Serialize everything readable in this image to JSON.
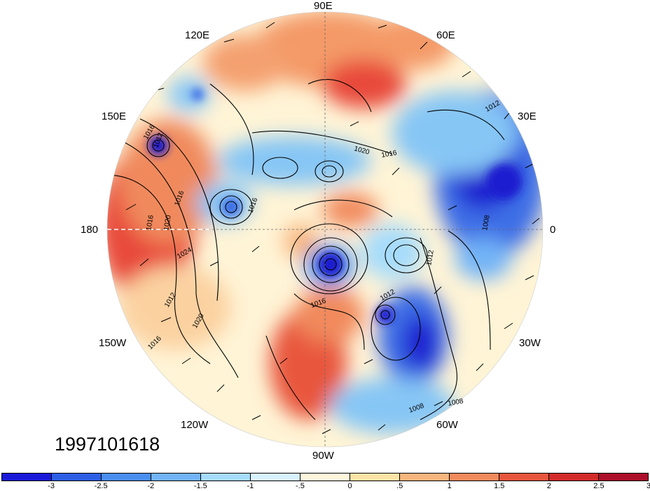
{
  "map": {
    "projection": "north-polar-stereographic",
    "longitude_labels": [
      "90E",
      "60E",
      "30E",
      "0",
      "30W",
      "60W",
      "90W",
      "120W",
      "150W",
      "180",
      "150E",
      "120E"
    ],
    "contour_labels": [
      "1012",
      "1016",
      "1020",
      "1024",
      "1016",
      "1020",
      "1016",
      "1012",
      "1020",
      "1016",
      "1016",
      "1016",
      "1012",
      "1016",
      "1008",
      "1012",
      "1012",
      "1008",
      "1008"
    ],
    "date": "1997101618",
    "colors": {
      "deep_blue": "#1f1fd0",
      "blue": "#3c6ee6",
      "light_blue": "#86c6f5",
      "pale_blue": "#c8ecff",
      "cream": "#fff8da",
      "orange": "#f49a68",
      "red": "#e8493a",
      "dark_red": "#b0102a"
    }
  },
  "colorbar": {
    "colors": [
      "#1a1ad8",
      "#2d5fe6",
      "#4a8ef0",
      "#72b4f7",
      "#a6dcfb",
      "#d8f3ff",
      "#fff7dc",
      "#fde4a6",
      "#f8b57e",
      "#f18a5d",
      "#e8563e",
      "#d32b2b",
      "#ac0f29"
    ],
    "tick_labels": [
      "-3",
      "-2.5",
      "-2",
      "-1.5",
      "-1",
      "-.5",
      "0",
      ".5",
      "1",
      "1.5",
      "2",
      "2.5",
      "3"
    ]
  }
}
